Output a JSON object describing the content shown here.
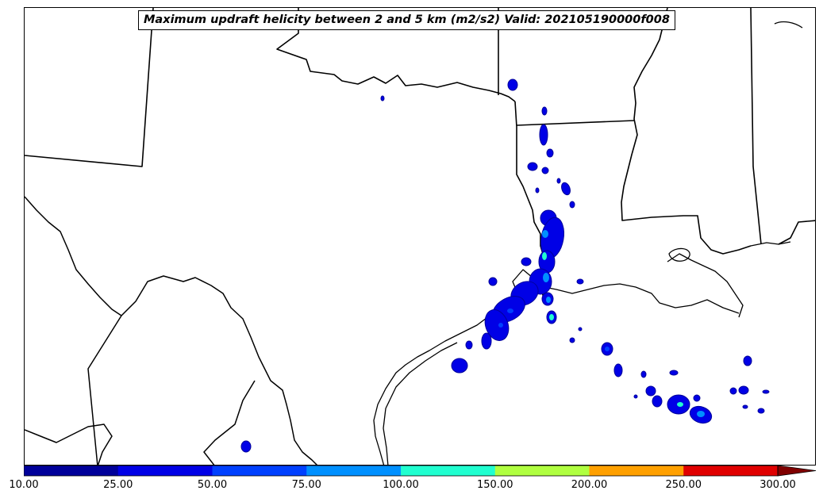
{
  "map": {
    "title": "Maximum updraft helicity between 2 and 5 km (m2/s2) Valid: 202105190000f008"
  },
  "colorbar": {
    "ticks": [
      "10.00",
      "25.00",
      "50.00",
      "75.00",
      "100.00",
      "150.00",
      "200.00",
      "250.00",
      "300.00"
    ],
    "levels": [
      10,
      25,
      50,
      75,
      100,
      150,
      200,
      250,
      300
    ],
    "colors": [
      "#00009a",
      "#0000e6",
      "#0040ff",
      "#0090ff",
      "#20ffd0",
      "#b0ff40",
      "#ffa000",
      "#e00000",
      "#800000"
    ],
    "extend": "max"
  }
}
